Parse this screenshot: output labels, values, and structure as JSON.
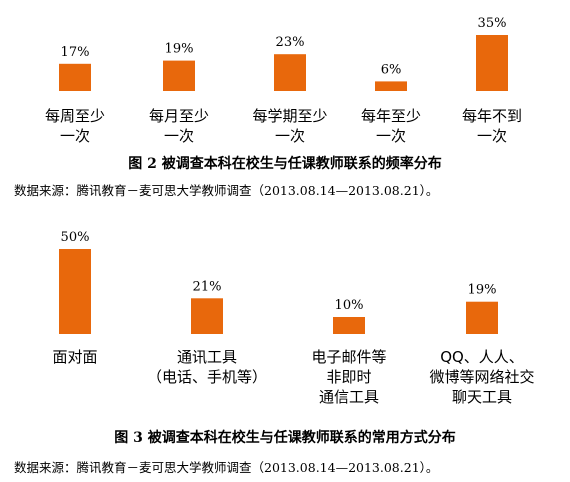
{
  "figures": [
    {
      "caption": "图 2  被调查本科在校生与任课教师联系的频率分布",
      "source": "数据来源：腾讯教育－麦可思大学教师调查（2013.08.14—2013.08.21）。"
    },
    {
      "caption": "图 3  被调查本科在校生与任课教师联系的常用方式分布",
      "source": "数据来源：腾讯教育－麦可思大学教师调查（2013.08.14—2013.08.21）。"
    }
  ],
  "colors": {
    "bar": "#E8680C",
    "text": "#000000"
  },
  "chart_data": [
    {
      "type": "bar",
      "title": "图 2  被调查本科在校生与任课教师联系的频率分布",
      "categories": [
        [
          "每周至少",
          "一次"
        ],
        [
          "每月至少",
          "一次"
        ],
        [
          "每学期至少",
          "一次"
        ],
        [
          "每年至少",
          "一次"
        ],
        [
          "每年不到",
          "一次"
        ]
      ],
      "values": [
        17,
        19,
        23,
        6,
        35
      ],
      "value_labels": [
        "17%",
        "19%",
        "23%",
        "6%",
        "35%"
      ],
      "unit": "%",
      "ylim": [
        0,
        35
      ],
      "grid": false,
      "legend": false
    },
    {
      "type": "bar",
      "title": "图 3  被调查本科在校生与任课教师联系的常用方式分布",
      "categories": [
        [
          "面对面"
        ],
        [
          "通讯工具",
          "（电话、手机等）"
        ],
        [
          "电子邮件等",
          "非即时",
          "通信工具"
        ],
        [
          "QQ、人人、",
          "微博等网络社交",
          "聊天工具"
        ]
      ],
      "values": [
        50,
        21,
        10,
        19
      ],
      "value_labels": [
        "50%",
        "21%",
        "10%",
        "19%"
      ],
      "unit": "%",
      "ylim": [
        0,
        50
      ],
      "grid": false,
      "legend": false
    }
  ]
}
